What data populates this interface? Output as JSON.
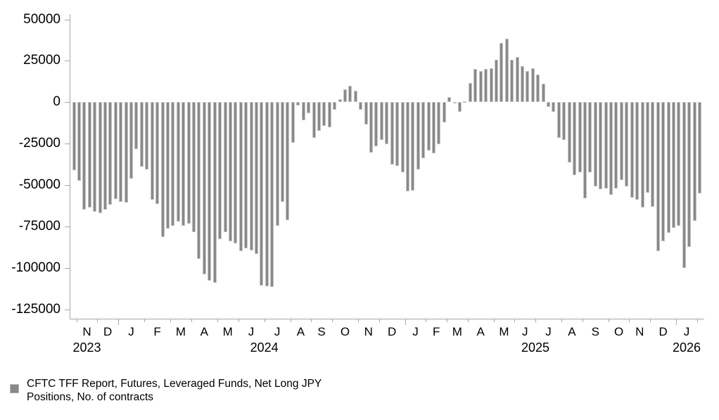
{
  "chart_data": {
    "type": "bar",
    "title": "",
    "legend": "CFTC TFF Report, Futures, Leveraged Funds, Net Long JPY Positions, No. of contracts",
    "legend_lines": [
      "CFTC TFF Report, Futures, Leveraged Funds, Net Long JPY",
      "Positions, No. of contracts"
    ],
    "bar_color": "#8a8888",
    "grid": false,
    "legend_position": "bottom-left",
    "ylabel": "",
    "xlabel": "",
    "ylim": [
      -128000,
      53000
    ],
    "y_ticks": [
      50000,
      25000,
      0,
      -25000,
      -50000,
      -75000,
      -100000,
      -125000
    ],
    "y_tick_labels": [
      "50000",
      "25000",
      "0",
      "-25000",
      "-50000",
      "-75000",
      "-100000",
      "-125000"
    ],
    "x_unit": "weekly observations",
    "months": [
      {
        "label": "",
        "weeks": 1
      },
      {
        "label": "N",
        "weeks": 4
      },
      {
        "label": "D",
        "weeks": 4
      },
      {
        "label": "J",
        "weeks": 5,
        "year_tick": true
      },
      {
        "label": "F",
        "weeks": 5
      },
      {
        "label": "M",
        "weeks": 4
      },
      {
        "label": "A",
        "weeks": 5
      },
      {
        "label": "M",
        "weeks": 4
      },
      {
        "label": "J",
        "weeks": 5
      },
      {
        "label": "J",
        "weeks": 5
      },
      {
        "label": "A",
        "weeks": 4
      },
      {
        "label": "S",
        "weeks": 4
      },
      {
        "label": "O",
        "weeks": 5
      },
      {
        "label": "N",
        "weeks": 4
      },
      {
        "label": "D",
        "weeks": 5
      },
      {
        "label": "J",
        "weeks": 4,
        "year_tick": true
      },
      {
        "label": "F",
        "weeks": 4
      },
      {
        "label": "M",
        "weeks": 4
      },
      {
        "label": "A",
        "weeks": 5
      },
      {
        "label": "M",
        "weeks": 4
      },
      {
        "label": "J",
        "weeks": 4
      },
      {
        "label": "J",
        "weeks": 5
      },
      {
        "label": "A",
        "weeks": 4
      },
      {
        "label": "S",
        "weeks": 5
      },
      {
        "label": "O",
        "weeks": 4
      },
      {
        "label": "N",
        "weeks": 4
      },
      {
        "label": "D",
        "weeks": 5
      },
      {
        "label": "J",
        "weeks": 4,
        "year_tick": true
      },
      {
        "label": "",
        "weeks": 1
      }
    ],
    "years": [
      {
        "label": "2023",
        "month_index": 1,
        "at": "center"
      },
      {
        "label": "2024",
        "month_index": 8,
        "at": "end"
      },
      {
        "label": "2025",
        "month_index": 20,
        "at": "end"
      },
      {
        "label": "2026",
        "month_index": 27,
        "at": "center"
      }
    ],
    "values": [
      -41000,
      -47500,
      -65000,
      -63500,
      -66000,
      -67000,
      -65000,
      -62000,
      -58500,
      -60000,
      -60500,
      -46000,
      -28500,
      -39000,
      -40500,
      -59000,
      -61500,
      -81500,
      -76500,
      -74500,
      -72000,
      -74500,
      -73500,
      -78500,
      -94500,
      -104000,
      -107500,
      -109000,
      -82500,
      -78500,
      -84000,
      -85000,
      -90000,
      -88000,
      -89500,
      -91500,
      -110500,
      -111000,
      -111500,
      -74500,
      -60000,
      -71000,
      -24500,
      -2000,
      -11000,
      -6500,
      -21500,
      -17500,
      -14500,
      -15000,
      -4500,
      2000,
      8000,
      10000,
      7000,
      -4500,
      -13500,
      -30500,
      -26500,
      -23000,
      -25500,
      -37500,
      -38500,
      -42500,
      -54000,
      -53500,
      -40500,
      -34000,
      -29000,
      -31000,
      -25500,
      -12000,
      3000,
      -500,
      -6000,
      500,
      11500,
      20000,
      19000,
      20000,
      20500,
      25500,
      36000,
      38500,
      25500,
      27500,
      22000,
      19000,
      20500,
      16500,
      11000,
      -3000,
      -6000,
      -21500,
      -23000,
      -36500,
      -44000,
      -42500,
      -58000,
      -42500,
      -51000,
      -52500,
      -52000,
      -56000,
      -52000,
      -47000,
      -51000,
      -57500,
      -59000,
      -63500,
      -54500,
      -63000,
      -90000,
      -84000,
      -79000,
      -76000,
      -74500,
      -100000,
      -87500,
      -71500,
      -55000
    ]
  }
}
